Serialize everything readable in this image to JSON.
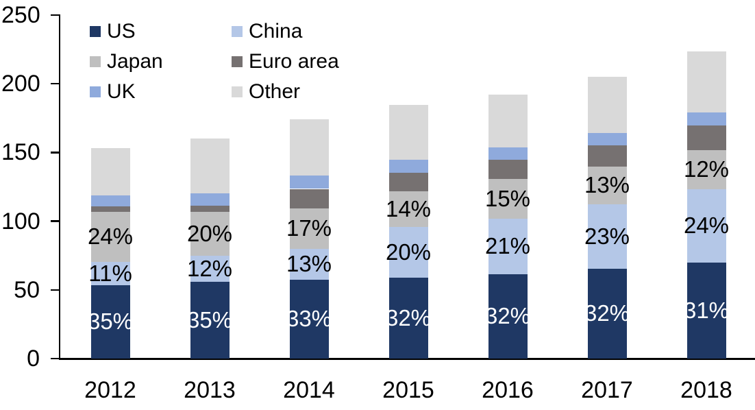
{
  "chart_data": {
    "type": "bar",
    "subtype": "stacked-vertical",
    "title": "",
    "x_labels": [
      "2012",
      "2013",
      "2014",
      "2015",
      "2016",
      "2017",
      "2018"
    ],
    "y_axis": {
      "min": 0,
      "max": 250,
      "ticks": [
        "0",
        "50",
        "100",
        "150",
        "200",
        "250"
      ],
      "grid": false
    },
    "legend": {
      "position": "top-left",
      "columns": 2,
      "order": [
        "US",
        "China",
        "Japan",
        "Euro area",
        "UK",
        "Other"
      ]
    },
    "totals": [
      153,
      160,
      174,
      184.5,
      192,
      205,
      223.5
    ],
    "series": [
      {
        "name": "US",
        "color": "#1F3864",
        "values": [
          53.5,
          56,
          57.5,
          59,
          61.5,
          65.5,
          70
        ],
        "labels": [
          "35%",
          "35%",
          "33%",
          "32%",
          "32%",
          "32%",
          "31%"
        ],
        "label_color": "#FFFFFF"
      },
      {
        "name": "China",
        "color": "#B4C7E7",
        "values": [
          17,
          19,
          22.5,
          37,
          40.5,
          47,
          53.5
        ],
        "labels": [
          "11%",
          "12%",
          "13%",
          "20%",
          "21%",
          "23%",
          "24%"
        ],
        "label_color": "#000000"
      },
      {
        "name": "Japan",
        "color": "#BFBFBF",
        "values": [
          36.5,
          32,
          29.5,
          26,
          28.5,
          27,
          28
        ],
        "labels": [
          "24%",
          "20%",
          "17%",
          "14%",
          "15%",
          "13%",
          "12%"
        ],
        "label_color": "#000000"
      },
      {
        "name": "Euro area",
        "color": "#767171",
        "values": [
          4,
          4.5,
          14,
          13,
          14,
          15.5,
          18
        ],
        "labels": null,
        "label_color": null
      },
      {
        "name": "UK",
        "color": "#8FAADC",
        "values": [
          8,
          9,
          9.5,
          9.5,
          9,
          9,
          9.5
        ],
        "labels": null,
        "label_color": null
      },
      {
        "name": "Other",
        "color": "#D9D9D9",
        "values": [
          34,
          39.5,
          41,
          40,
          38.5,
          41,
          44.5
        ],
        "labels": null,
        "label_color": null
      }
    ]
  },
  "colors": {
    "axis": "#000000",
    "background": "#FFFFFF"
  }
}
